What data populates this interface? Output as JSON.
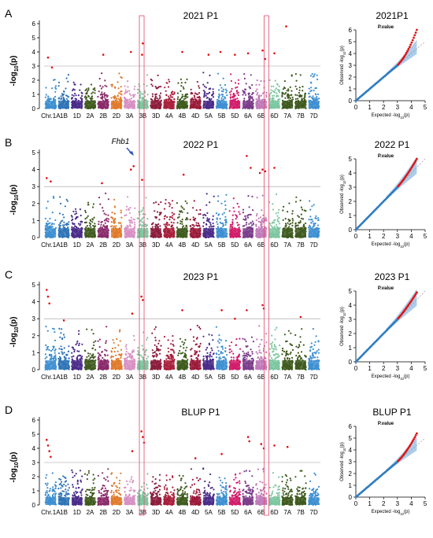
{
  "chart_data": {
    "type": "scatter",
    "chromosomes": [
      "1A",
      "1B",
      "1D",
      "2A",
      "2B",
      "2D",
      "3A",
      "3B",
      "3D",
      "4A",
      "4B",
      "4D",
      "5A",
      "5B",
      "5D",
      "6A",
      "6B",
      "6D",
      "7A",
      "7B",
      "7D"
    ],
    "x_tick_labels": [
      "Chr.1A",
      "1B",
      "1D",
      "2A",
      "2B",
      "2D",
      "3A",
      "3B",
      "3D",
      "4A",
      "4B",
      "4D",
      "5A",
      "5B",
      "5D",
      "6A",
      "6B",
      "6D",
      "7A",
      "7B",
      "7D"
    ],
    "chromosome_colors": [
      "#3d8fd1",
      "#2e73b6",
      "#4a2c8a",
      "#3f5a1e",
      "#8a2a6a",
      "#e07a2b",
      "#d890c4",
      "#7cc7a0",
      "#8c1c3c",
      "#a81f3a",
      "#3f5a1e",
      "#9a1a3a",
      "#4a2c8a",
      "#3d8fd1",
      "#d21d6a",
      "#7a3c8a",
      "#c07ab8",
      "#7cc7a0",
      "#3f5a1e",
      "#3f5a1e",
      "#3d8fd1"
    ],
    "threshold_color": "#999999",
    "highlight_color": "#e04a6a",
    "highlighted_regions": [
      "3B",
      "6B-6D"
    ],
    "qq_point_color": "#2f7cc0",
    "qq_tail_color": "#e01010",
    "qq_band_color": "#9cc4e8",
    "panels": [
      {
        "letter": "A",
        "title": "2021 P1",
        "ylabel_main": "-log",
        "ylabel_sub": "10",
        "ylabel_tail": "(p)",
        "ylim": [
          0,
          6
        ],
        "yticks": [
          "0",
          "1",
          "2",
          "3",
          "4",
          "5",
          "6"
        ],
        "threshold": 3.0,
        "peaks": [
          {
            "chr": "1A",
            "frac": 0.3,
            "value": 3.6
          },
          {
            "chr": "1A",
            "frac": 0.6,
            "value": 2.9
          },
          {
            "chr": "2B",
            "frac": 0.5,
            "value": 3.8
          },
          {
            "chr": "3A",
            "frac": 0.6,
            "value": 4.0
          },
          {
            "chr": "3B",
            "frac": 0.5,
            "value": 4.6
          },
          {
            "chr": "3B",
            "frac": 0.45,
            "value": 3.8
          },
          {
            "chr": "4B",
            "frac": 0.5,
            "value": 4.0
          },
          {
            "chr": "5A",
            "frac": 0.5,
            "value": 3.8
          },
          {
            "chr": "5B",
            "frac": 0.4,
            "value": 4.0
          },
          {
            "chr": "5D",
            "frac": 0.5,
            "value": 3.8
          },
          {
            "chr": "6A",
            "frac": 0.5,
            "value": 3.9
          },
          {
            "chr": "6B",
            "frac": 0.6,
            "value": 4.1
          },
          {
            "chr": "6B",
            "frac": 0.8,
            "value": 3.5
          },
          {
            "chr": "6D",
            "frac": 0.5,
            "value": 3.9
          },
          {
            "chr": "7A",
            "frac": 0.4,
            "value": 5.8
          }
        ],
        "qq": {
          "title": "2021P1",
          "subtitle": "P.value",
          "xlabel": "Expected -log",
          "xlabel_sub": "10",
          "xlabel_tail": "(p)",
          "ylabel": "Observed -log",
          "ylabel_sub": "10",
          "ylabel_tail": "(p)",
          "xlim": [
            0,
            5
          ],
          "ylim": [
            0,
            6
          ],
          "xticks": [
            "0",
            "1",
            "2",
            "3",
            "4",
            "5"
          ],
          "yticks": [
            "0",
            "1",
            "2",
            "3",
            "4",
            "5",
            "6"
          ],
          "max_expected": 4.4,
          "max_observed": 5.8,
          "tail_start": 3.0
        }
      },
      {
        "letter": "B",
        "title": "2022 P1",
        "ylabel_main": "-log",
        "ylabel_sub": "10",
        "ylabel_tail": "(p)",
        "ylim": [
          0,
          5
        ],
        "yticks": [
          "0",
          "1",
          "2",
          "3",
          "4",
          "5"
        ],
        "threshold": 3.0,
        "annotation": "Fhb1",
        "annotation_chr": "3B",
        "peaks": [
          {
            "chr": "1A",
            "frac": 0.2,
            "value": 3.5
          },
          {
            "chr": "1A",
            "frac": 0.5,
            "value": 3.3
          },
          {
            "chr": "2B",
            "frac": 0.4,
            "value": 3.2
          },
          {
            "chr": "3A",
            "frac": 0.6,
            "value": 4.0
          },
          {
            "chr": "3A",
            "frac": 0.8,
            "value": 4.2
          },
          {
            "chr": "3B",
            "frac": 0.45,
            "value": 3.4
          },
          {
            "chr": "4B",
            "frac": 0.6,
            "value": 3.7
          },
          {
            "chr": "6A",
            "frac": 0.4,
            "value": 4.8
          },
          {
            "chr": "6A",
            "frac": 0.7,
            "value": 4.1
          },
          {
            "chr": "6B",
            "frac": 0.4,
            "value": 3.8
          },
          {
            "chr": "6B",
            "frac": 0.6,
            "value": 4.0
          },
          {
            "chr": "6B",
            "frac": 0.8,
            "value": 3.9
          },
          {
            "chr": "6D",
            "frac": 0.5,
            "value": 4.1
          }
        ],
        "qq": {
          "title": "2022 P1",
          "subtitle": "P.value",
          "xlabel": "Expected -log",
          "xlabel_sub": "10",
          "xlabel_tail": "(p)",
          "ylabel": "Observed -log",
          "ylabel_sub": "10",
          "ylabel_tail": "(p)",
          "xlim": [
            0,
            5
          ],
          "ylim": [
            0,
            5
          ],
          "xticks": [
            "0",
            "1",
            "2",
            "3",
            "4",
            "5"
          ],
          "yticks": [
            "0",
            "1",
            "2",
            "3",
            "4",
            "5"
          ],
          "max_expected": 4.4,
          "max_observed": 4.8,
          "tail_start": 3.0
        }
      },
      {
        "letter": "C",
        "title": "2023 P1",
        "ylabel_main": "-log",
        "ylabel_sub": "10",
        "ylabel_tail": "(p)",
        "ylim": [
          0,
          5
        ],
        "yticks": [
          "0",
          "1",
          "2",
          "3",
          "4",
          "5"
        ],
        "threshold": 3.0,
        "peaks": [
          {
            "chr": "1A",
            "frac": 0.2,
            "value": 4.7
          },
          {
            "chr": "1A",
            "frac": 0.3,
            "value": 4.3
          },
          {
            "chr": "1A",
            "frac": 0.4,
            "value": 3.9
          },
          {
            "chr": "1B",
            "frac": 0.5,
            "value": 2.9
          },
          {
            "chr": "3A",
            "frac": 0.7,
            "value": 3.3
          },
          {
            "chr": "3B",
            "frac": 0.4,
            "value": 4.3
          },
          {
            "chr": "3B",
            "frac": 0.5,
            "value": 4.1
          },
          {
            "chr": "4B",
            "frac": 0.5,
            "value": 3.5
          },
          {
            "chr": "5B",
            "frac": 0.5,
            "value": 3.5
          },
          {
            "chr": "5D",
            "frac": 0.5,
            "value": 3.0
          },
          {
            "chr": "6A",
            "frac": 0.4,
            "value": 3.5
          },
          {
            "chr": "6B",
            "frac": 0.6,
            "value": 3.8
          },
          {
            "chr": "6B",
            "frac": 0.7,
            "value": 3.6
          },
          {
            "chr": "7B",
            "frac": 0.5,
            "value": 3.1
          }
        ],
        "qq": {
          "title": "2023 P1",
          "subtitle": "P.value",
          "xlabel": "Expected -log",
          "xlabel_sub": "10",
          "xlabel_tail": "(p)",
          "ylabel": "Observed -log",
          "ylabel_sub": "10",
          "ylabel_tail": "(p)",
          "xlim": [
            0,
            5
          ],
          "ylim": [
            0,
            5
          ],
          "xticks": [
            "0",
            "1",
            "2",
            "3",
            "4",
            "5"
          ],
          "yticks": [
            "0",
            "1",
            "2",
            "3",
            "4",
            "5"
          ],
          "max_expected": 4.4,
          "max_observed": 4.7,
          "tail_start": 3.0
        }
      },
      {
        "letter": "D",
        "title": "BLUP P1",
        "ylabel_main": "-log",
        "ylabel_sub": "10",
        "ylabel_tail": "(p)",
        "ylim": [
          0,
          6
        ],
        "yticks": [
          "0",
          "1",
          "2",
          "3",
          "4",
          "5",
          "6"
        ],
        "threshold": 3.0,
        "peaks": [
          {
            "chr": "1A",
            "frac": 0.2,
            "value": 4.6
          },
          {
            "chr": "1A",
            "frac": 0.3,
            "value": 4.2
          },
          {
            "chr": "1A",
            "frac": 0.4,
            "value": 3.8
          },
          {
            "chr": "1A",
            "frac": 0.5,
            "value": 3.4
          },
          {
            "chr": "3A",
            "frac": 0.7,
            "value": 3.8
          },
          {
            "chr": "3B",
            "frac": 0.4,
            "value": 5.2
          },
          {
            "chr": "3B",
            "frac": 0.5,
            "value": 4.8
          },
          {
            "chr": "3B",
            "frac": 0.6,
            "value": 4.4
          },
          {
            "chr": "4D",
            "frac": 0.5,
            "value": 3.3
          },
          {
            "chr": "5B",
            "frac": 0.5,
            "value": 3.6
          },
          {
            "chr": "6A",
            "frac": 0.5,
            "value": 4.8
          },
          {
            "chr": "6A",
            "frac": 0.6,
            "value": 4.5
          },
          {
            "chr": "6B",
            "frac": 0.5,
            "value": 4.3
          },
          {
            "chr": "6B",
            "frac": 0.7,
            "value": 4.0
          },
          {
            "chr": "6D",
            "frac": 0.5,
            "value": 4.2
          },
          {
            "chr": "7A",
            "frac": 0.5,
            "value": 4.1
          }
        ],
        "qq": {
          "title": "BLUP P1",
          "subtitle": "P.value",
          "xlabel": "Expected -log",
          "xlabel_sub": "10",
          "xlabel_tail": "(p)",
          "ylabel": "Observed -log",
          "ylabel_sub": "10",
          "ylabel_tail": "(p)",
          "xlim": [
            0,
            5
          ],
          "ylim": [
            0,
            6
          ],
          "xticks": [
            "0",
            "1",
            "2",
            "3",
            "4",
            "5"
          ],
          "yticks": [
            "0",
            "1",
            "2",
            "3",
            "4",
            "5",
            "6"
          ],
          "max_expected": 4.4,
          "max_observed": 5.2,
          "tail_start": 3.0
        }
      }
    ]
  }
}
